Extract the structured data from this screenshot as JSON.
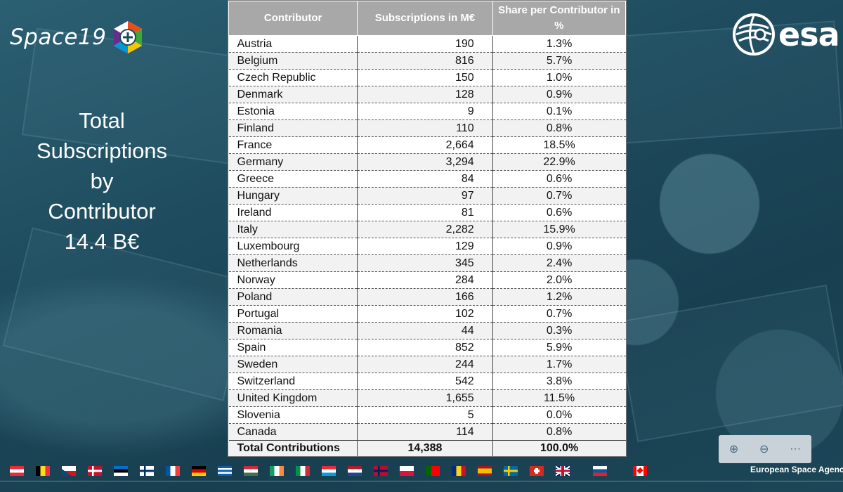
{
  "brand": {
    "space19": "Space19",
    "esa": "esa",
    "footer": "European Space Agenc"
  },
  "left_title": [
    "Total",
    "Subscriptions",
    "by",
    "Contributor",
    "14.4 B€"
  ],
  "table": {
    "headers": {
      "contributor": "Contributor",
      "subscriptions": "Subscriptions in M€",
      "share": "Share per Contributor in %"
    },
    "rows": [
      {
        "name": "Austria",
        "value": "190",
        "share": "1.3%"
      },
      {
        "name": "Belgium",
        "value": "816",
        "share": "5.7%"
      },
      {
        "name": "Czech Republic",
        "value": "150",
        "share": "1.0%"
      },
      {
        "name": "Denmark",
        "value": "128",
        "share": "0.9%"
      },
      {
        "name": "Estonia",
        "value": "9",
        "share": "0.1%"
      },
      {
        "name": "Finland",
        "value": "110",
        "share": "0.8%"
      },
      {
        "name": "France",
        "value": "2,664",
        "share": "18.5%"
      },
      {
        "name": "Germany",
        "value": "3,294",
        "share": "22.9%"
      },
      {
        "name": "Greece",
        "value": "84",
        "share": "0.6%"
      },
      {
        "name": "Hungary",
        "value": "97",
        "share": "0.7%"
      },
      {
        "name": "Ireland",
        "value": "81",
        "share": "0.6%"
      },
      {
        "name": "Italy",
        "value": "2,282",
        "share": "15.9%"
      },
      {
        "name": "Luxembourg",
        "value": "129",
        "share": "0.9%"
      },
      {
        "name": "Netherlands",
        "value": "345",
        "share": "2.4%"
      },
      {
        "name": "Norway",
        "value": "284",
        "share": "2.0%"
      },
      {
        "name": "Poland",
        "value": "166",
        "share": "1.2%"
      },
      {
        "name": "Portugal",
        "value": "102",
        "share": "0.7%"
      },
      {
        "name": "Romania",
        "value": "44",
        "share": "0.3%"
      },
      {
        "name": "Spain",
        "value": "852",
        "share": "5.9%"
      },
      {
        "name": "Sweden",
        "value": "244",
        "share": "1.7%"
      },
      {
        "name": "Switzerland",
        "value": "542",
        "share": "3.8%"
      },
      {
        "name": "United Kingdom",
        "value": "1,655",
        "share": "11.5%"
      },
      {
        "name": "Slovenia",
        "value": "5",
        "share": "0.0%"
      },
      {
        "name": "Canada",
        "value": "114",
        "share": "0.8%"
      }
    ],
    "total": {
      "label": "Total Contributions",
      "value": "14,388",
      "share": "100.0%"
    }
  },
  "zoom_controls": {
    "zoom_in": "⊕",
    "zoom_out": "⊖",
    "more": "···"
  },
  "flags": [
    {
      "country": "austria",
      "stripes": "h",
      "colors": [
        "#ed2939",
        "#ffffff",
        "#ed2939"
      ]
    },
    {
      "country": "belgium",
      "stripes": "v",
      "colors": [
        "#000000",
        "#fdda24",
        "#ef3340"
      ]
    },
    {
      "country": "czech-republic",
      "stripes": "cz",
      "colors": [
        "#ffffff",
        "#d7141a",
        "#11457e"
      ]
    },
    {
      "country": "denmark",
      "stripes": "nordic",
      "colors": [
        "#c8102e",
        "#ffffff"
      ]
    },
    {
      "country": "estonia",
      "stripes": "h",
      "colors": [
        "#0072ce",
        "#000000",
        "#ffffff"
      ]
    },
    {
      "country": "finland",
      "stripes": "nordic",
      "colors": [
        "#ffffff",
        "#002f6c"
      ]
    },
    {
      "country": "france",
      "stripes": "v",
      "colors": [
        "#0055a4",
        "#ffffff",
        "#ef4135"
      ]
    },
    {
      "country": "germany",
      "stripes": "h",
      "colors": [
        "#000000",
        "#dd0000",
        "#ffce00"
      ]
    },
    {
      "country": "greece",
      "stripes": "h",
      "colors": [
        "#0d5eaf",
        "#ffffff",
        "#0d5eaf",
        "#ffffff",
        "#0d5eaf"
      ]
    },
    {
      "country": "hungary",
      "stripes": "h",
      "colors": [
        "#ce2939",
        "#ffffff",
        "#477050"
      ]
    },
    {
      "country": "ireland",
      "stripes": "v",
      "colors": [
        "#169b62",
        "#ffffff",
        "#ff883e"
      ]
    },
    {
      "country": "italy",
      "stripes": "v",
      "colors": [
        "#009246",
        "#ffffff",
        "#ce2b37"
      ]
    },
    {
      "country": "luxembourg",
      "stripes": "h",
      "colors": [
        "#ed2939",
        "#ffffff",
        "#00a1de"
      ]
    },
    {
      "country": "netherlands",
      "stripes": "h",
      "colors": [
        "#ae1c28",
        "#ffffff",
        "#21468b"
      ]
    },
    {
      "country": "norway",
      "stripes": "nordic",
      "colors": [
        "#ba0c2f",
        "#00205b"
      ]
    },
    {
      "country": "poland",
      "stripes": "h",
      "colors": [
        "#ffffff",
        "#dc143c"
      ]
    },
    {
      "country": "portugal",
      "stripes": "v2",
      "colors": [
        "#006600",
        "#ff0000"
      ]
    },
    {
      "country": "romania",
      "stripes": "v",
      "colors": [
        "#002b7f",
        "#fcd116",
        "#ce1126"
      ]
    },
    {
      "country": "spain",
      "stripes": "h",
      "colors": [
        "#aa151b",
        "#f1bf00",
        "#f1bf00",
        "#aa151b"
      ]
    },
    {
      "country": "sweden",
      "stripes": "nordic",
      "colors": [
        "#006aa7",
        "#fecc00"
      ]
    },
    {
      "country": "switzerland",
      "stripes": "ch",
      "colors": [
        "#d52b1e",
        "#ffffff"
      ]
    },
    {
      "country": "united-kingdom",
      "stripes": "uk",
      "colors": [
        "#012169",
        "#ffffff",
        "#c8102e"
      ]
    },
    {
      "country": "slovenia",
      "stripes": "h",
      "colors": [
        "#ffffff",
        "#005da4",
        "#ed1c24"
      ]
    },
    {
      "country": "canada",
      "stripes": "ca",
      "colors": [
        "#ff0000",
        "#ffffff"
      ]
    }
  ]
}
